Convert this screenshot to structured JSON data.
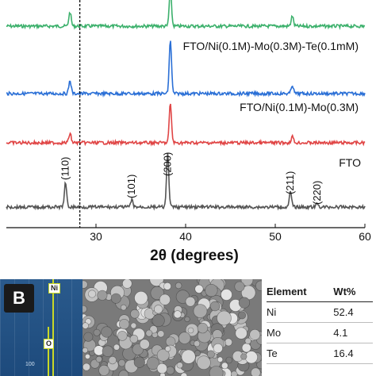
{
  "chart_data": {
    "type": "line",
    "xlabel": "2θ (degrees)",
    "xlim": [
      20,
      60
    ],
    "x_ticks": [
      30,
      40,
      50,
      60
    ],
    "reference_line_x": 28.2,
    "colors": [
      "#3bb06b",
      "#2a6fd6",
      "#e04545",
      "#555555"
    ],
    "series": [
      {
        "name": "FTO/Ni(0.1M)-Mo(0.3M)-Te(0.1mM)",
        "peaks": [
          {
            "x": 27.1,
            "height": 0.22
          },
          {
            "x": 38.3,
            "height": 0.58
          },
          {
            "x": 51.9,
            "height": 0.16
          }
        ]
      },
      {
        "name": "FTO/Ni(0.1M)-Mo(0.3M)",
        "peaks": [
          {
            "x": 27.1,
            "height": 0.24
          },
          {
            "x": 38.3,
            "height": 1.0
          },
          {
            "x": 51.9,
            "height": 0.16
          }
        ]
      },
      {
        "name": "",
        "peaks": [
          {
            "x": 27.1,
            "height": 0.19
          },
          {
            "x": 38.3,
            "height": 0.8
          },
          {
            "x": 51.9,
            "height": 0.13
          }
        ]
      },
      {
        "name": "FTO",
        "peaks": [
          {
            "x": 26.6,
            "height": 0.45
          },
          {
            "x": 34.0,
            "height": 0.13
          },
          {
            "x": 38.0,
            "height": 1.0
          },
          {
            "x": 51.7,
            "height": 0.28
          },
          {
            "x": 54.7,
            "height": 0.06
          }
        ]
      }
    ],
    "annotations": [
      {
        "text": "(110)",
        "x": 26.6
      },
      {
        "text": "(101)",
        "x": 34.0
      },
      {
        "text": "(200)",
        "x": 38.0
      },
      {
        "text": "(211)",
        "x": 51.7
      },
      {
        "text": "(220)",
        "x": 54.7
      }
    ]
  },
  "panel_b": {
    "label": "B",
    "eds": {
      "peak_labels": [
        "Ni",
        "O"
      ],
      "tick_label": "100"
    },
    "table": {
      "headers": [
        "Element",
        "Wt%"
      ],
      "rows": [
        {
          "element": "Ni",
          "wt": "52.4"
        },
        {
          "element": "Mo",
          "wt": "4.1"
        },
        {
          "element": "Te",
          "wt": "16.4"
        }
      ]
    }
  }
}
